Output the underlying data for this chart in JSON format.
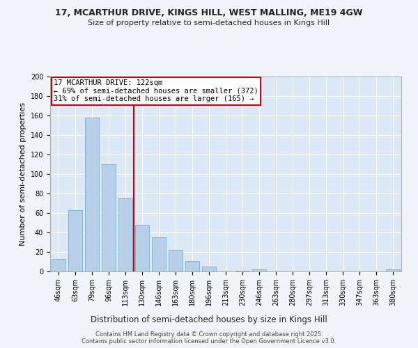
{
  "title1": "17, MCARTHUR DRIVE, KINGS HILL, WEST MALLING, ME19 4GW",
  "title2": "Size of property relative to semi-detached houses in Kings Hill",
  "xlabel": "Distribution of semi-detached houses by size in Kings Hill",
  "ylabel": "Number of semi-detached properties",
  "bar_labels": [
    "46sqm",
    "63sqm",
    "79sqm",
    "96sqm",
    "113sqm",
    "130sqm",
    "146sqm",
    "163sqm",
    "180sqm",
    "196sqm",
    "213sqm",
    "230sqm",
    "246sqm",
    "263sqm",
    "280sqm",
    "297sqm",
    "313sqm",
    "330sqm",
    "347sqm",
    "363sqm",
    "380sqm"
  ],
  "bar_values": [
    13,
    63,
    158,
    110,
    75,
    48,
    35,
    22,
    11,
    5,
    0,
    1,
    2,
    0,
    0,
    0,
    0,
    0,
    0,
    0,
    2
  ],
  "bar_color": "#b8cfe8",
  "bar_edge_color": "#7aaad0",
  "vline_color": "#cc0000",
  "box_color": "#cc0000",
  "annotation_fontsize": 7.5,
  "background_color": "#dce8f5",
  "grid_color": "#ffffff",
  "fig_bg_color": "#f0f4f8",
  "ylim": [
    0,
    200
  ],
  "yticks": [
    0,
    20,
    40,
    60,
    80,
    100,
    120,
    140,
    160,
    180,
    200
  ],
  "footer": "Contains HM Land Registry data © Crown copyright and database right 2025.\nContains public sector information licensed under the Open Government Licence v3.0.",
  "title1_fontsize": 9.0,
  "title2_fontsize": 8.0,
  "xlabel_fontsize": 8.5,
  "ylabel_fontsize": 8.0,
  "tick_fontsize": 7.0,
  "footer_fontsize": 6.0,
  "pct_smaller": 69,
  "n_smaller": 372,
  "pct_larger": 31,
  "n_larger": 165
}
